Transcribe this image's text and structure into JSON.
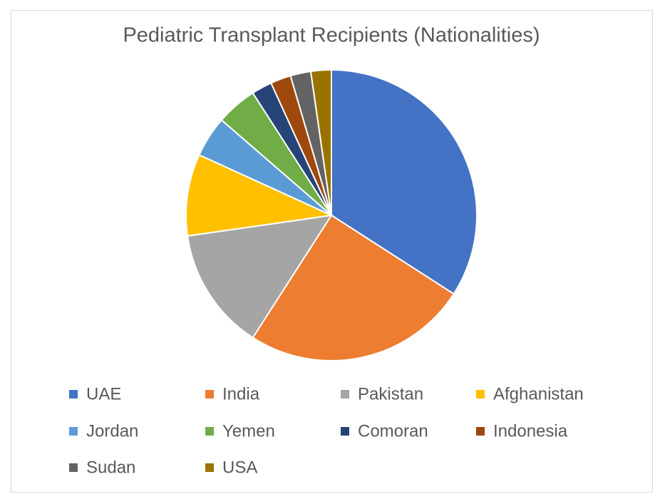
{
  "chart_data": {
    "type": "pie",
    "title": "Pediatric Transplant Recipients (Nationalities)",
    "categories": [
      "UAE",
      "India",
      "Pakistan",
      "Afghanistan",
      "Jordan",
      "Yemen",
      "Comoran",
      "Indonesia",
      "Sudan",
      "USA"
    ],
    "values": [
      15,
      11,
      6,
      4,
      2,
      2,
      1,
      1,
      1,
      1
    ],
    "colors": [
      "#4472c4",
      "#ed7d31",
      "#a5a5a5",
      "#ffc000",
      "#5b9bd5",
      "#70ad47",
      "#264478",
      "#9e480e",
      "#636363",
      "#997300"
    ],
    "legend": "bottom"
  }
}
